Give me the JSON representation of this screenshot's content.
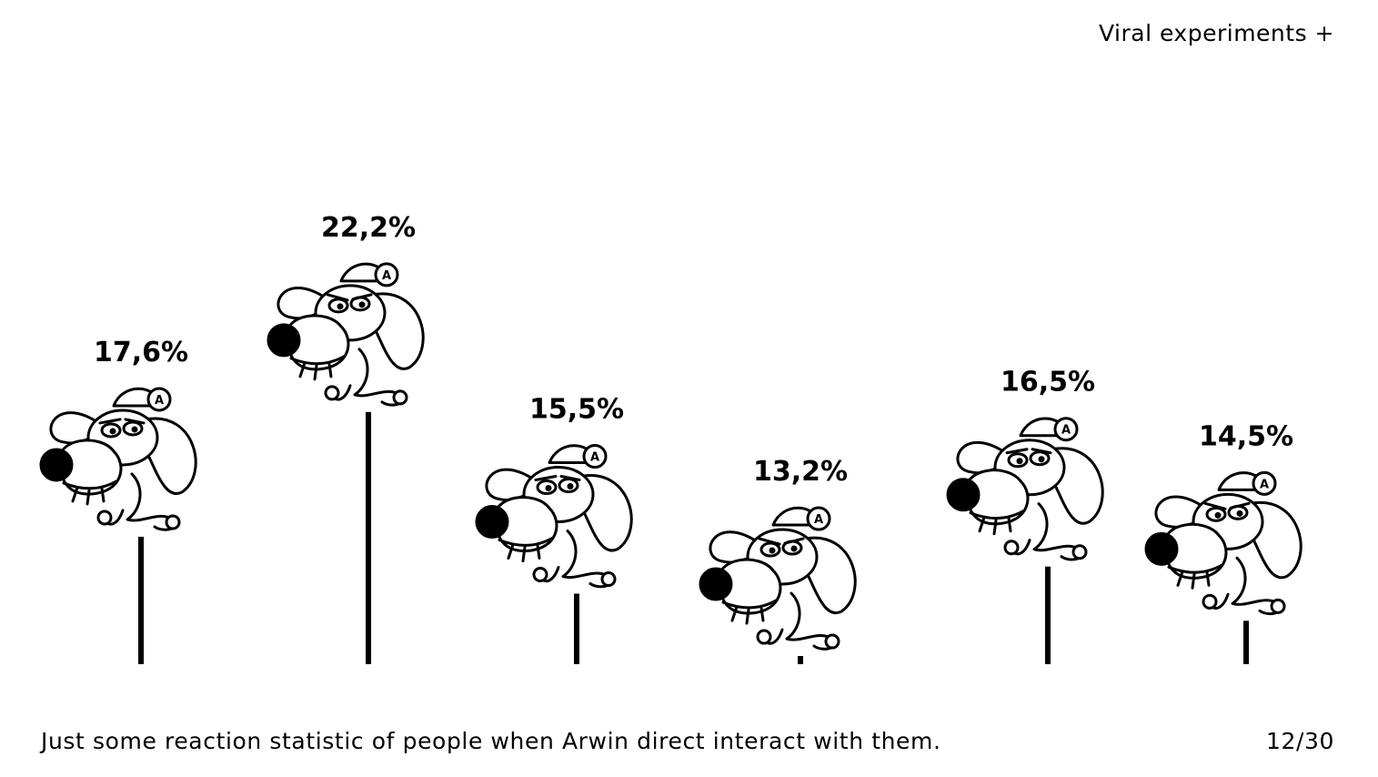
{
  "header": {
    "label": "Viral experiments +"
  },
  "footer": {
    "caption": "Just some reaction statistic of people when Arwin direct interact with them.",
    "page": "12/30"
  },
  "chart_data": {
    "type": "bar",
    "title": "",
    "xlabel": "",
    "ylabel": "",
    "categories": [
      "",
      "",
      "",
      "",
      "",
      ""
    ],
    "values": [
      17.6,
      22.2,
      15.5,
      13.2,
      16.5,
      14.5
    ],
    "value_labels": [
      "17,6%",
      "22,2%",
      "15,5%",
      "13,2%",
      "16,5%",
      "14,5%"
    ],
    "grid": false,
    "legend": "none"
  }
}
